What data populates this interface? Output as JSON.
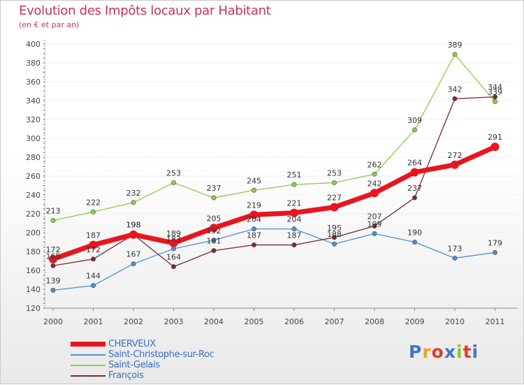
{
  "title": "Evolution des Impôts locaux par Habitant",
  "subtitle": "(en € et par an)",
  "logo_text": "Proxiti",
  "logo_colors": [
    "#3a78c9",
    "#f0a020",
    "#e23b2e",
    "#3a78c9",
    "#8bc43a",
    "#e23b2e",
    "#3a78c9"
  ],
  "colors": {
    "title": "#c8325a",
    "axis": "#888888",
    "grid": "#f0f0f0",
    "legend_text": "#3a6fbf"
  },
  "chart_data": {
    "type": "line",
    "x": [
      "2000",
      "2001",
      "2002",
      "2003",
      "2004",
      "2005",
      "2006",
      "2007",
      "2008",
      "2009",
      "2010",
      "2011"
    ],
    "ylim": [
      120,
      400
    ],
    "yticks": [
      120,
      140,
      160,
      180,
      200,
      220,
      240,
      260,
      280,
      300,
      320,
      340,
      360,
      380,
      400
    ],
    "grid": true,
    "legend_position": "bottom-left",
    "series": [
      {
        "name": "CHERVEUX",
        "color": "#e8151e",
        "values": [
          172,
          187,
          198,
          189,
          205,
          219,
          221,
          227,
          242,
          264,
          272,
          291
        ]
      },
      {
        "name": "Saint-Christophe-sur-Roc",
        "color": "#4a8fd0",
        "values": [
          139,
          144,
          167,
          183,
          192,
          204,
          204,
          188,
          199,
          190,
          173,
          179
        ]
      },
      {
        "name": "Saint-Gelais",
        "color": "#8acd48",
        "values": [
          213,
          222,
          232,
          253,
          237,
          245,
          251,
          253,
          262,
          309,
          389,
          339
        ]
      },
      {
        "name": "François",
        "color": "#7a2a2e",
        "values": [
          165,
          172,
          198,
          164,
          181,
          187,
          187,
          195,
          207,
          237,
          342,
          344
        ]
      }
    ]
  }
}
